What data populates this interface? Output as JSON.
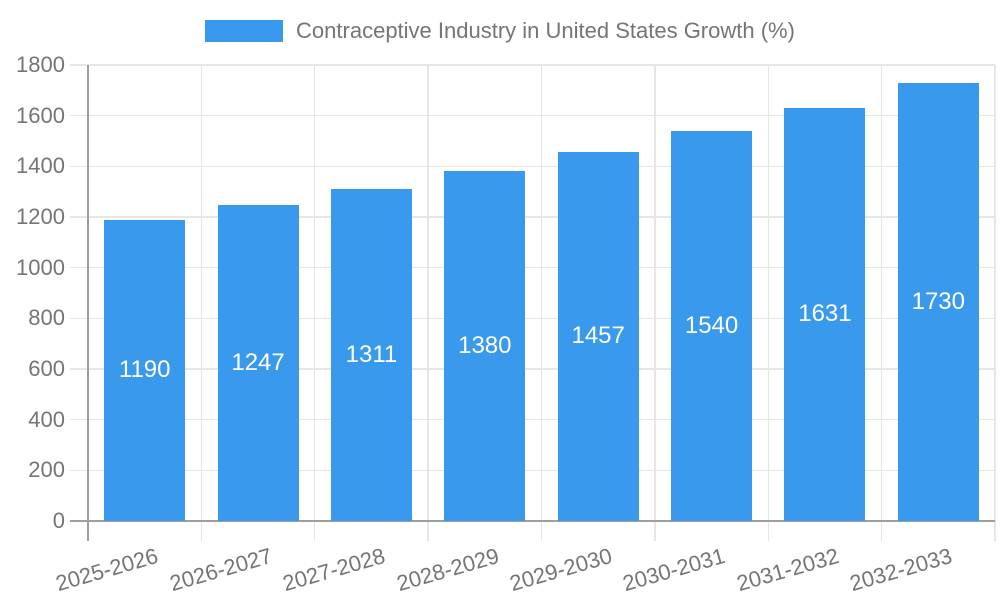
{
  "chart_data": {
    "type": "bar",
    "title": "Contraceptive Industry in United States Growth (%)",
    "categories": [
      "2025-2026",
      "2026-2027",
      "2027-2028",
      "2028-2029",
      "2029-2030",
      "2030-2031",
      "2031-2032",
      "2032-2033"
    ],
    "values": [
      1190,
      1247,
      1311,
      1380,
      1457,
      1540,
      1631,
      1730
    ],
    "xlabel": "",
    "ylabel": "",
    "ylim": [
      0,
      1800
    ],
    "yticks": [
      0,
      200,
      400,
      600,
      800,
      1000,
      1200,
      1400,
      1600,
      1800
    ],
    "grid": true,
    "legend_position": "top",
    "colors": {
      "bar": "#3999EC",
      "bar_label": "#FFFFFF",
      "axis_text": "#757575",
      "grid_line": "#E6E6E6",
      "axis_line": "#9E9E9E",
      "background": "#FFFFFF"
    }
  }
}
